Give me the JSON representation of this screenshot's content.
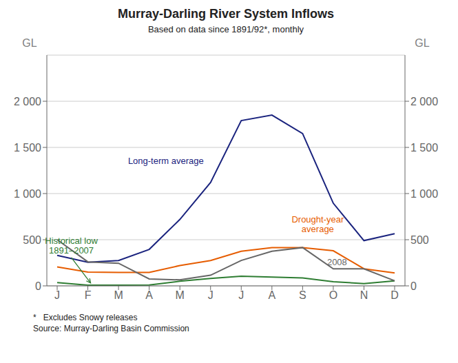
{
  "chart_data": {
    "type": "line",
    "title": "Murray-Darling River System Inflows",
    "subtitle": "Based on data since 1891/92*, monthly",
    "categories": [
      "J",
      "F",
      "M",
      "A",
      "M",
      "J",
      "J",
      "A",
      "S",
      "O",
      "N",
      "D"
    ],
    "series": [
      {
        "name": "Long-term average",
        "color": "#1a237e",
        "values": [
          330,
          255,
          275,
          395,
          720,
          1120,
          1790,
          1850,
          1650,
          895,
          490,
          565
        ]
      },
      {
        "name": "Drought-year\naverage",
        "color": "#e65c00",
        "values": [
          205,
          150,
          145,
          145,
          220,
          275,
          375,
          415,
          415,
          380,
          185,
          140
        ]
      },
      {
        "name": "Historical low\n1891–2007",
        "color": "#2e7d32",
        "values": [
          35,
          8,
          8,
          10,
          50,
          80,
          105,
          95,
          85,
          45,
          25,
          55
        ]
      },
      {
        "name": "2008",
        "color": "#666666",
        "values": [
          500,
          260,
          245,
          75,
          65,
          115,
          275,
          375,
          415,
          185,
          185,
          55
        ]
      }
    ],
    "ylabel": "GL",
    "y2label": "GL",
    "ylim": [
      0,
      2500
    ],
    "yticks": [
      0,
      500,
      {
        "value": 1000,
        "label": "1 000"
      },
      {
        "value": 1500,
        "label": "1 500"
      },
      {
        "value": 2000,
        "label": "2 000"
      }
    ],
    "y2lim": [
      0,
      2500
    ],
    "y2ticks": [
      0,
      500,
      {
        "value": 1000,
        "label": "1 000"
      },
      {
        "value": 1500,
        "label": "1 500"
      },
      {
        "value": 2000,
        "label": "2 000"
      }
    ],
    "grid": true,
    "footnotes": [
      "*   Excludes Snowy releases",
      "Source: Murray-Darling Basin Commission"
    ]
  }
}
